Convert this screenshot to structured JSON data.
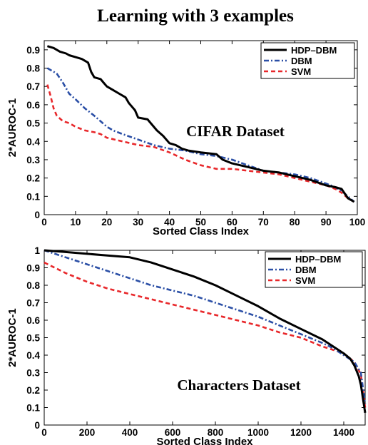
{
  "figure_title": "Learning with 3 examples",
  "colors": {
    "HDP-DBM": "#000000",
    "DBM": "#2b4fa6",
    "SVM": "#e8282b"
  },
  "chart_data": [
    {
      "type": "line",
      "title": "",
      "annotation": "CIFAR Dataset",
      "xlabel": "Sorted Class Index",
      "ylabel": "2*AUROC-1",
      "xlim": [
        0,
        100
      ],
      "ylim": [
        0,
        0.95
      ],
      "xticks": [
        0,
        10,
        20,
        30,
        40,
        50,
        60,
        70,
        80,
        90,
        100
      ],
      "yticks": [
        0,
        0.1,
        0.2,
        0.3,
        0.4,
        0.5,
        0.6,
        0.7,
        0.8,
        0.9
      ],
      "grid": false,
      "legend_position": "top-right",
      "series": [
        {
          "name": "HDP–DBM",
          "style": "solid",
          "x": [
            1,
            3,
            5,
            7,
            8,
            10,
            12,
            14,
            15,
            16,
            18,
            19,
            20,
            22,
            24,
            26,
            27,
            29,
            30,
            33,
            34,
            36,
            38,
            40,
            42,
            44,
            46,
            50,
            55,
            57,
            60,
            65,
            70,
            75,
            80,
            85,
            90,
            93,
            95,
            97,
            99
          ],
          "values": [
            0.92,
            0.91,
            0.89,
            0.88,
            0.87,
            0.86,
            0.85,
            0.83,
            0.78,
            0.75,
            0.74,
            0.72,
            0.7,
            0.68,
            0.66,
            0.64,
            0.61,
            0.57,
            0.53,
            0.52,
            0.5,
            0.46,
            0.43,
            0.39,
            0.38,
            0.36,
            0.35,
            0.34,
            0.33,
            0.3,
            0.28,
            0.26,
            0.24,
            0.23,
            0.21,
            0.19,
            0.16,
            0.15,
            0.14,
            0.09,
            0.07
          ]
        },
        {
          "name": "DBM",
          "style": "dashdot",
          "x": [
            1,
            2,
            4,
            6,
            8,
            10,
            13,
            16,
            18,
            20,
            22,
            25,
            30,
            35,
            40,
            45,
            50,
            55,
            60,
            65,
            70,
            75,
            80,
            85,
            90,
            93,
            95,
            97,
            99
          ],
          "values": [
            0.8,
            0.79,
            0.77,
            0.72,
            0.66,
            0.63,
            0.58,
            0.54,
            0.51,
            0.48,
            0.46,
            0.44,
            0.41,
            0.38,
            0.36,
            0.35,
            0.33,
            0.32,
            0.3,
            0.27,
            0.24,
            0.23,
            0.22,
            0.2,
            0.17,
            0.15,
            0.13,
            0.1,
            0.07
          ]
        },
        {
          "name": "SVM",
          "style": "dashed",
          "x": [
            1,
            2,
            3,
            4,
            6,
            8,
            10,
            13,
            16,
            18,
            20,
            25,
            30,
            35,
            40,
            45,
            50,
            55,
            60,
            65,
            70,
            75,
            80,
            85,
            90,
            93,
            95,
            97,
            99
          ],
          "values": [
            0.71,
            0.65,
            0.58,
            0.54,
            0.51,
            0.5,
            0.48,
            0.46,
            0.45,
            0.44,
            0.42,
            0.4,
            0.38,
            0.37,
            0.34,
            0.3,
            0.27,
            0.25,
            0.25,
            0.24,
            0.23,
            0.22,
            0.2,
            0.18,
            0.16,
            0.14,
            0.12,
            0.09,
            0.07
          ]
        }
      ]
    },
    {
      "type": "line",
      "title": "",
      "annotation": "Characters Dataset",
      "xlabel": "Sorted Class Index",
      "ylabel": "2*AUROC-1",
      "xlim": [
        0,
        1500
      ],
      "ylim": [
        0,
        1
      ],
      "xticks": [
        0,
        200,
        400,
        600,
        800,
        1000,
        1200,
        1400
      ],
      "yticks": [
        0,
        0.1,
        0.2,
        0.3,
        0.4,
        0.5,
        0.6,
        0.7,
        0.8,
        0.9,
        1
      ],
      "grid": false,
      "legend_position": "top-right",
      "series": [
        {
          "name": "HDP–DBM",
          "style": "solid",
          "x": [
            0,
            100,
            200,
            300,
            400,
            500,
            600,
            700,
            800,
            900,
            1000,
            1100,
            1200,
            1300,
            1350,
            1400,
            1430,
            1450,
            1470,
            1480,
            1490,
            1500
          ],
          "values": [
            1.0,
            0.99,
            0.98,
            0.97,
            0.96,
            0.93,
            0.89,
            0.85,
            0.8,
            0.74,
            0.68,
            0.61,
            0.55,
            0.49,
            0.45,
            0.41,
            0.38,
            0.34,
            0.28,
            0.23,
            0.15,
            0.07
          ]
        },
        {
          "name": "DBM",
          "style": "dashdot",
          "x": [
            0,
            100,
            200,
            300,
            400,
            500,
            600,
            700,
            800,
            900,
            1000,
            1100,
            1200,
            1300,
            1350,
            1400,
            1450,
            1480,
            1500
          ],
          "values": [
            1.0,
            0.96,
            0.92,
            0.88,
            0.84,
            0.8,
            0.77,
            0.74,
            0.7,
            0.66,
            0.62,
            0.57,
            0.52,
            0.47,
            0.44,
            0.4,
            0.36,
            0.3,
            0.12
          ]
        },
        {
          "name": "SVM",
          "style": "dashed",
          "x": [
            0,
            100,
            200,
            300,
            400,
            500,
            600,
            700,
            800,
            900,
            1000,
            1100,
            1200,
            1300,
            1350,
            1400,
            1450,
            1480,
            1500
          ],
          "values": [
            0.93,
            0.87,
            0.82,
            0.78,
            0.75,
            0.72,
            0.69,
            0.66,
            0.63,
            0.6,
            0.57,
            0.53,
            0.5,
            0.45,
            0.43,
            0.41,
            0.36,
            0.29,
            0.1
          ]
        }
      ]
    }
  ]
}
